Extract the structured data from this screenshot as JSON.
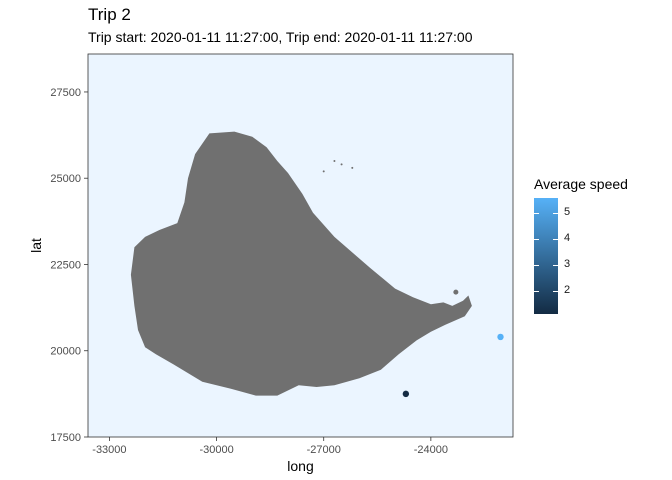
{
  "chart_data": {
    "type": "scatter",
    "title": "Trip 2",
    "subtitle": "Trip start: 2020-01-11 11:27:00, Trip end: 2020-01-11 11:27:00",
    "xlabel": "long",
    "ylabel": "lat",
    "xlim": [
      -33600,
      -21700
    ],
    "ylim": [
      17500,
      28600
    ],
    "x_ticks": [
      -33000,
      -30000,
      -27000,
      -24000
    ],
    "x_tick_labels": [
      "-33000",
      "-30000",
      "-27000",
      "-24000"
    ],
    "y_ticks": [
      17500,
      20000,
      22500,
      25000,
      27500
    ],
    "y_tick_labels": [
      "17500",
      "20000",
      "22500",
      "25000",
      "27500"
    ],
    "grid": false,
    "panel_background": "#EBF5FF",
    "land_color": "#707070",
    "points": [
      {
        "x": -22050,
        "y": 20400,
        "speed": 5.6
      },
      {
        "x": -24700,
        "y": 18750,
        "speed": 1.1
      }
    ],
    "legend": {
      "title": "Average speed",
      "position": "right",
      "ticks": [
        2,
        3,
        4,
        5
      ],
      "tick_labels": [
        "2",
        "3",
        "4",
        "5"
      ],
      "range": [
        1.1,
        5.6
      ],
      "low_color": "#132B43",
      "high_color": "#56B1F7"
    },
    "island_outline": [
      [
        -30200,
        26300
      ],
      [
        -29500,
        26350
      ],
      [
        -29000,
        26200
      ],
      [
        -28600,
        25900
      ],
      [
        -28300,
        25500
      ],
      [
        -28000,
        25150
      ],
      [
        -27600,
        24550
      ],
      [
        -27300,
        24000
      ],
      [
        -26700,
        23300
      ],
      [
        -25700,
        22400
      ],
      [
        -25000,
        21800
      ],
      [
        -24500,
        21550
      ],
      [
        -24000,
        21350
      ],
      [
        -23650,
        21400
      ],
      [
        -23400,
        21300
      ],
      [
        -23100,
        21450
      ],
      [
        -22950,
        21600
      ],
      [
        -22850,
        21300
      ],
      [
        -23050,
        21000
      ],
      [
        -23600,
        20750
      ],
      [
        -24000,
        20550
      ],
      [
        -24400,
        20300
      ],
      [
        -24900,
        19900
      ],
      [
        -25400,
        19450
      ],
      [
        -26000,
        19200
      ],
      [
        -26700,
        19000
      ],
      [
        -27200,
        18950
      ],
      [
        -27700,
        19000
      ],
      [
        -28300,
        18700
      ],
      [
        -28900,
        18700
      ],
      [
        -29600,
        18900
      ],
      [
        -30400,
        19100
      ],
      [
        -31200,
        19600
      ],
      [
        -31700,
        19900
      ],
      [
        -32000,
        20100
      ],
      [
        -32200,
        20600
      ],
      [
        -32300,
        21300
      ],
      [
        -32400,
        22200
      ],
      [
        -32300,
        23000
      ],
      [
        -32000,
        23300
      ],
      [
        -31600,
        23500
      ],
      [
        -31100,
        23700
      ],
      [
        -30900,
        24300
      ],
      [
        -30800,
        25000
      ],
      [
        -30600,
        25700
      ]
    ],
    "islets": [
      [
        -27000,
        25200
      ],
      [
        -26700,
        25500
      ],
      [
        -26500,
        25400
      ],
      [
        -26200,
        25300
      ],
      [
        -23300,
        21700
      ]
    ]
  }
}
